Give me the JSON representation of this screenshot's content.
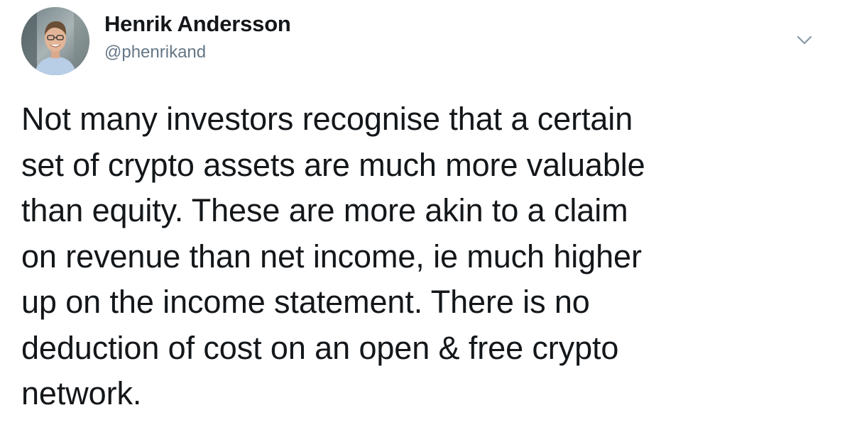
{
  "tweet": {
    "author": {
      "name": "Henrik Andersson",
      "handle": "@phenrikand",
      "avatar_icon": "user-avatar"
    },
    "menu_icon": "chevron-down-icon",
    "text_lines": [
      "Not many investors recognise that a certain",
      "set of crypto assets are much more valuable",
      "than equity. These are more akin to a claim",
      "on revenue than net income, ie much higher",
      "up on the income statement. There is no",
      "deduction of cost on an open & free crypto",
      "network."
    ]
  },
  "colors": {
    "text": "#14171a",
    "secondary": "#657786",
    "caret": "#8899a6"
  }
}
